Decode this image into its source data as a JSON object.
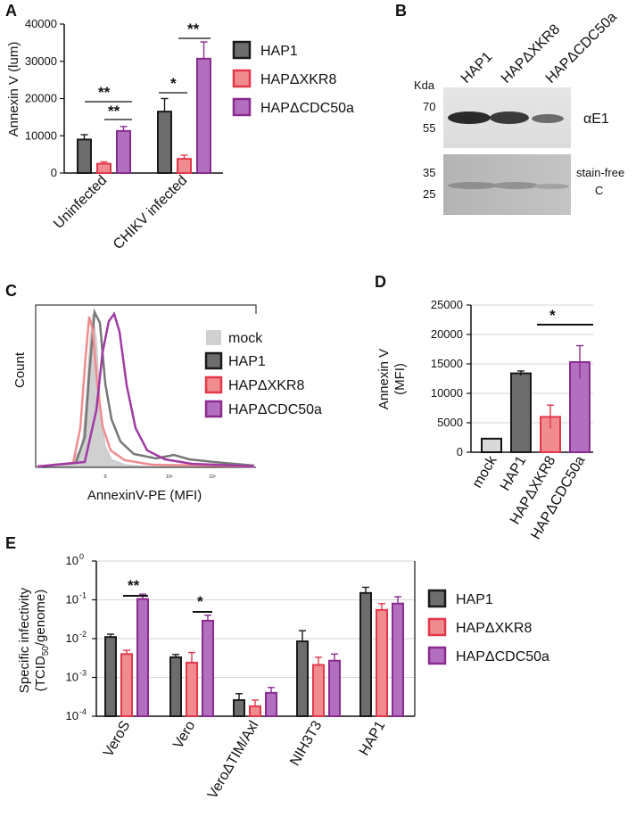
{
  "panels": {
    "A": "A",
    "B": "B",
    "C": "C",
    "D": "D",
    "E": "E"
  },
  "colors": {
    "HAP1": "#6d6d6d",
    "HAPdXKR8": "#f08c90",
    "HAPdCDC50a": "#b36fbf",
    "mock": "#d9d9d9",
    "edge_HAP1": "#1a1a1a",
    "edge_XKR8": "#e2384a",
    "edge_CDC50a": "#8a2b8f"
  },
  "legend": {
    "HAP1": "HAP1",
    "XKR8": "HAPΔXKR8",
    "CDC50a": "HAPΔCDC50a",
    "mock": "mock"
  },
  "chart_data": [
    {
      "panel": "A",
      "type": "bar",
      "ylabel": "Annexin V (lum)",
      "ylim": [
        0,
        40000
      ],
      "yticks": [
        "0",
        "10000",
        "20000",
        "30000",
        "40000"
      ],
      "categories": [
        "Uninfected",
        "CHIKV infected"
      ],
      "series": [
        {
          "name": "HAP1",
          "values": [
            9000,
            16500
          ],
          "errors": [
            1300,
            3500
          ]
        },
        {
          "name": "HAPΔXKR8",
          "values": [
            2500,
            3800
          ],
          "errors": [
            500,
            1000
          ]
        },
        {
          "name": "HAPΔCDC50a",
          "values": [
            11300,
            30700
          ],
          "errors": [
            1200,
            4500
          ]
        }
      ],
      "significance": [
        "**",
        "**",
        "*",
        "**"
      ],
      "legend_position": "right"
    },
    {
      "panel": "B",
      "type": "other",
      "lane_labels": [
        "HAP1",
        "HAPΔXKR8",
        "HAPΔCDC50a"
      ],
      "kda_label": "Kda",
      "markers_top": [
        "70",
        "55"
      ],
      "markers_bottom": [
        "35",
        "25"
      ],
      "band_label_top": "αE1",
      "band_label_bottom": [
        "stain-free",
        "C"
      ]
    },
    {
      "panel": "C",
      "type": "area",
      "xlabel": "AnnexinV-PE (MFI)",
      "ylabel": "Count",
      "xticks": [
        "0",
        "10⁵",
        "10⁶"
      ],
      "series_names": [
        "mock",
        "HAP1",
        "HAPΔXKR8",
        "HAPΔCDC50a"
      ],
      "legend_position": "right"
    },
    {
      "panel": "D",
      "type": "bar",
      "ylabel": [
        "Annexin V",
        "(MFI)"
      ],
      "ylim": [
        0,
        25000
      ],
      "yticks": [
        "0",
        "5000",
        "10000",
        "15000",
        "20000",
        "25000"
      ],
      "categories": [
        "mock",
        "HAP1",
        "HAPΔXKR8",
        "HAPΔCDC50a"
      ],
      "values": [
        2300,
        13400,
        6000,
        15300
      ],
      "errors": [
        0,
        400,
        2000,
        2800
      ],
      "significance": [
        "*"
      ],
      "grid": true
    },
    {
      "panel": "E",
      "type": "bar",
      "ylabel": [
        "Specific infectivity",
        "(TCID",
        "/genome)"
      ],
      "ylabel_sub": "50",
      "yscale": "log",
      "ylim": [
        0.0001,
        1
      ],
      "yticks": [
        "10",
        "10",
        "10",
        "10",
        "10"
      ],
      "ytick_exponents": [
        "0",
        "-1",
        "-2",
        "-3",
        "-4"
      ],
      "categories": [
        "VeroS",
        "Vero",
        "VeroΔTIM/Axl",
        "NIH3T3",
        "HAP1"
      ],
      "series": [
        {
          "name": "HAP1",
          "values": [
            0.011,
            0.0033,
            0.00026,
            0.0085,
            0.15
          ],
          "errors_up": [
            0.013,
            0.0039,
            0.00038,
            0.016,
            0.21
          ]
        },
        {
          "name": "HAPΔXKR8",
          "values": [
            0.004,
            0.0024,
            0.00018,
            0.0021,
            0.055
          ],
          "errors_up": [
            0.005,
            0.0044,
            0.00026,
            0.0033,
            0.08
          ]
        },
        {
          "name": "HAPΔCDC50a",
          "values": [
            0.105,
            0.029,
            0.0004,
            0.0027,
            0.08
          ],
          "errors_up": [
            0.14,
            0.04,
            0.00055,
            0.004,
            0.12
          ]
        }
      ],
      "significance": [
        "**",
        "*"
      ],
      "grid": true,
      "legend_position": "right"
    }
  ]
}
